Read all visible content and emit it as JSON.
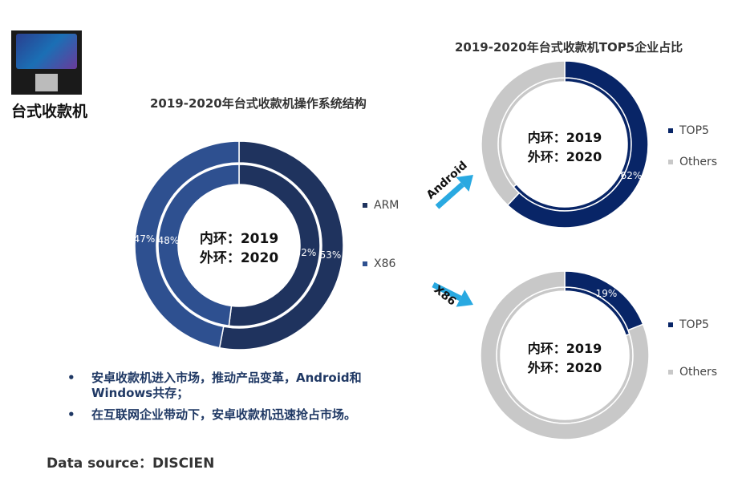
{
  "device": {
    "label": "台式收款机"
  },
  "colors": {
    "arm": "#1f335e",
    "x86": "#2e5090",
    "top5": "#082567",
    "others": "#c8c8c8",
    "arrow": "#29a9e1"
  },
  "chart_data": [
    {
      "type": "pie",
      "title": "2019-2020年台式收款机操作系统结构",
      "center_text": [
        "内环：2019",
        "外环：2020"
      ],
      "legend_position": "right",
      "rings": [
        {
          "name": "2019 (inner)",
          "labels": [
            "ARM",
            "X86"
          ],
          "values": [
            52,
            48
          ],
          "value_labels": [
            "52%",
            "48%"
          ]
        },
        {
          "name": "2020 (outer)",
          "labels": [
            "ARM",
            "X86"
          ],
          "values": [
            53,
            47
          ],
          "value_labels": [
            "53%",
            "47%"
          ]
        }
      ],
      "legend": [
        "ARM",
        "X86"
      ]
    },
    {
      "type": "pie",
      "title": "2019-2020年台式收款机TOP5企业占比",
      "segment": "Android",
      "center_text": [
        "内环：2019",
        "外环：2020"
      ],
      "legend_position": "right",
      "rings": [
        {
          "name": "2019 (inner)",
          "labels": [
            "TOP5",
            "Others"
          ],
          "values": [
            64,
            36
          ],
          "value_labels": [
            "64%",
            ""
          ]
        },
        {
          "name": "2020 (outer)",
          "labels": [
            "TOP5",
            "Others"
          ],
          "values": [
            62,
            38
          ],
          "value_labels": [
            "62%",
            ""
          ]
        }
      ],
      "legend": [
        "TOP5",
        "Others"
      ]
    },
    {
      "type": "pie",
      "segment": "X86",
      "center_text": [
        "内环：2019",
        "外环：2020"
      ],
      "legend_position": "right",
      "rings": [
        {
          "name": "2019 (inner)",
          "labels": [
            "TOP5",
            "Others"
          ],
          "values": [
            20,
            80
          ],
          "value_labels": [
            "20%",
            ""
          ]
        },
        {
          "name": "2020 (outer)",
          "labels": [
            "TOP5",
            "Others"
          ],
          "values": [
            19,
            81
          ],
          "value_labels": [
            "19%",
            ""
          ]
        }
      ],
      "legend": [
        "TOP5",
        "Others"
      ]
    }
  ],
  "bullets": [
    {
      "marker": "•",
      "text": "安卓收款机进入市场，推动产品变革，Android和Windows共存；"
    },
    {
      "marker": "•",
      "text": "在互联网企业带动下，安卓收款机迅速抢占市场。"
    }
  ],
  "source": "Data source：DISCIEN"
}
